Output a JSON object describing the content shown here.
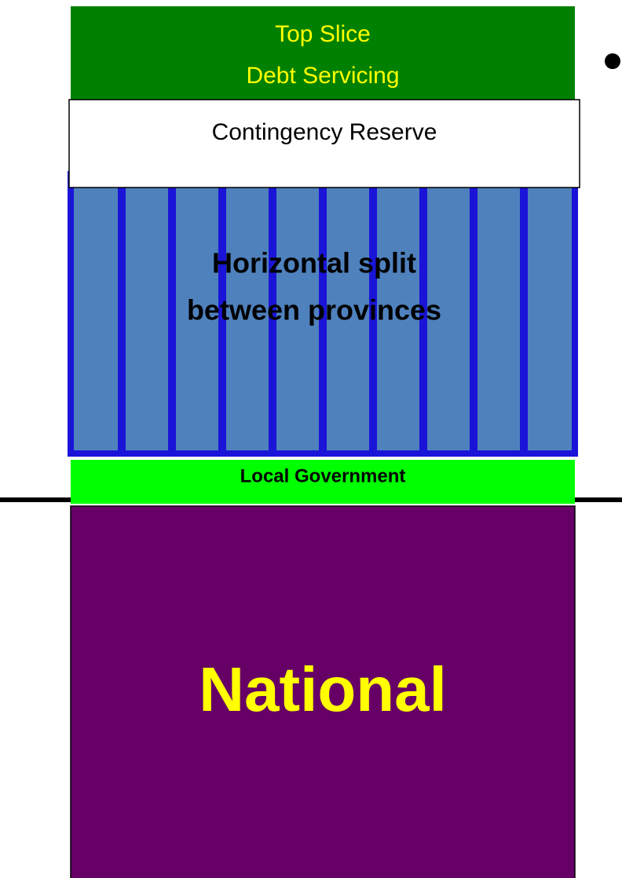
{
  "top_slice": {
    "lines": [
      "Top Slice",
      "Debt Servicing"
    ]
  },
  "contingency": {
    "label": "Contingency Reserve"
  },
  "horizontal_split": {
    "lines": [
      "Horizontal split",
      "between provinces"
    ]
  },
  "local_government": {
    "label": "Local Government"
  },
  "national": {
    "label": "National"
  }
}
